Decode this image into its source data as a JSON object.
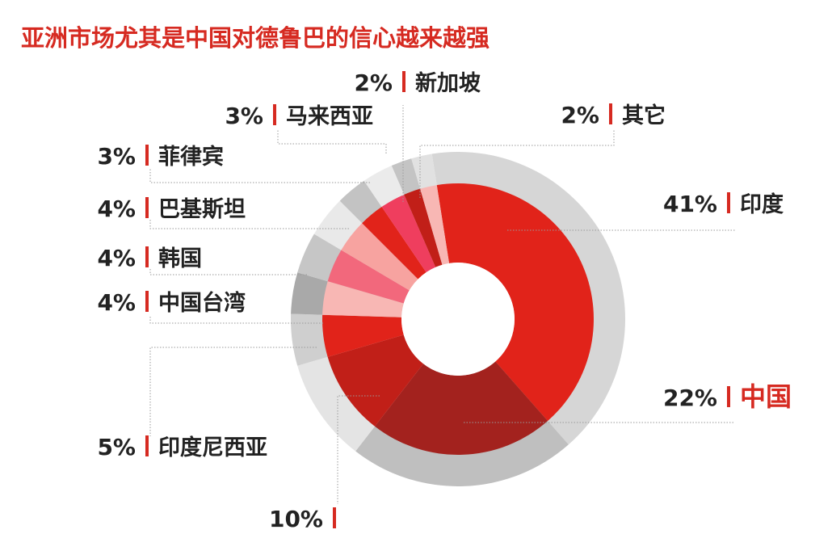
{
  "chart_data": {
    "type": "pie",
    "title": "亚洲市场尤其是中国对德鲁巴的信心越来越强",
    "slices": [
      {
        "label": "印度",
        "value": 41,
        "value_text": "41%",
        "color": "#e1231a",
        "ring": "#d6d6d6"
      },
      {
        "label": "中国",
        "value": 22,
        "value_text": "22%",
        "color": "#a3221e",
        "ring": "#bfbfbf",
        "highlight_color": "#d62a21"
      },
      {
        "label": "",
        "value": 10,
        "value_text": "10%",
        "color": "#c11f18",
        "ring": "#e4e4e4"
      },
      {
        "label": "印度尼西亚",
        "value": 5,
        "value_text": "5%",
        "color": "#e1231a",
        "ring": "#cfcfcf"
      },
      {
        "label": "中国台湾",
        "value": 4,
        "value_text": "4%",
        "color": "#f8b7b4",
        "ring": "#a9a9a9"
      },
      {
        "label": "韩国",
        "value": 4,
        "value_text": "4%",
        "color": "#f2687c",
        "ring": "#c6c6c6"
      },
      {
        "label": "巴基斯坦",
        "value": 4,
        "value_text": "4%",
        "color": "#f7a3a0",
        "ring": "#e9e9e9"
      },
      {
        "label": "菲律宾",
        "value": 3,
        "value_text": "3%",
        "color": "#e1231a",
        "ring": "#c3c3c3"
      },
      {
        "label": "马来西亚",
        "value": 3,
        "value_text": "3%",
        "color": "#ef3e5e",
        "ring": "#ebebeb"
      },
      {
        "label": "新加坡",
        "value": 2,
        "value_text": "2%",
        "color": "#c11f18",
        "ring": "#c4c4c4"
      },
      {
        "label": "其它",
        "value": 2,
        "value_text": "2%",
        "color": "#f8b7b4",
        "ring": "#e1e1e1"
      }
    ]
  },
  "colors": {
    "title": "#d62a21",
    "text": "#222222",
    "marker": "#d62a21",
    "leader": "#9a9a9a"
  }
}
